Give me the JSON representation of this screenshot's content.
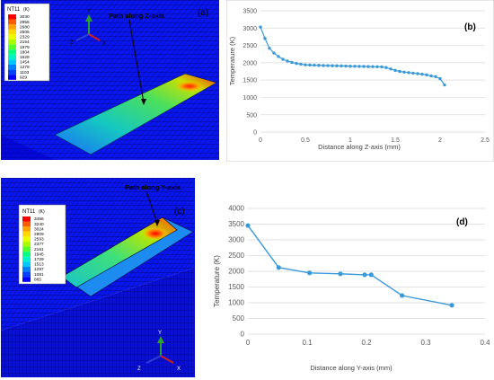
{
  "panels": [
    {
      "id": "a",
      "panel_label": "(a)",
      "legend": {
        "title": "NT11",
        "unit": "(K)",
        "values": [
          "3030",
          "2855",
          "2680",
          "2505",
          "2329",
          "2154",
          "1979",
          "1804",
          "1629",
          "1454",
          "1278",
          "1103",
          "929"
        ],
        "colors": [
          "#ff0000",
          "#ff5a00",
          "#ffa200",
          "#ffd800",
          "#e7ff00",
          "#a8ff00",
          "#55ff2a",
          "#00ff7f",
          "#00f2c8",
          "#00c8ff",
          "#0080ff",
          "#0040ff",
          "#0000ff"
        ]
      },
      "annotation": "Path along Z-axis",
      "axes": {
        "y": "Y",
        "z": "Z",
        "x": "X"
      }
    },
    {
      "id": "c",
      "panel_label": "(c)",
      "legend": {
        "title": "NT11",
        "unit": "(K)",
        "values": [
          "3456",
          "3240",
          "3024",
          "2809",
          "2593",
          "2377",
          "2161",
          "1945",
          "1729",
          "1513",
          "1297",
          "1081",
          "865"
        ],
        "colors": [
          "#ff0000",
          "#ff5a00",
          "#ffa200",
          "#ffd800",
          "#e7ff00",
          "#a8ff00",
          "#55ff2a",
          "#00ff7f",
          "#00f2c8",
          "#00c8ff",
          "#0080ff",
          "#0040ff",
          "#0000ff"
        ]
      },
      "annotation": "Path along Y-axis",
      "axes": {
        "y": "Y",
        "z": "Z",
        "x": "X"
      }
    }
  ],
  "colors": {
    "series": "#3a9ad9",
    "grid": "#d9d9d9",
    "axis_text": "#595959",
    "mesh_blue": "#0a16f0",
    "mesh_line": "#00003c"
  },
  "chart_data": [
    {
      "type": "line",
      "panel_label": "(b)",
      "xlabel": "Distance along Z-axis (mm)",
      "ylabel": "Temperature (K)",
      "xlim": [
        0,
        2.5
      ],
      "ylim": [
        0,
        3500
      ],
      "xticks": [
        0,
        0.5,
        1,
        1.5,
        2,
        2.5
      ],
      "yticks": [
        0,
        500,
        1000,
        1500,
        2000,
        2500,
        3000,
        3500
      ],
      "xtick_labels": [
        "0",
        "0.5",
        "1",
        "1.5",
        "2",
        "2.5"
      ],
      "ytick_labels": [
        "0",
        "500",
        "1000",
        "1500",
        "2000",
        "2500",
        "3000",
        "3500"
      ],
      "grid": "horizontal",
      "series": [
        {
          "x": [
            0,
            0.05,
            0.1,
            0.15,
            0.2,
            0.25,
            0.3,
            0.35,
            0.4,
            0.45,
            0.5,
            0.55,
            0.6,
            0.65,
            0.7,
            0.75,
            0.8,
            0.85,
            0.9,
            0.95,
            1.0,
            1.05,
            1.1,
            1.15,
            1.2,
            1.25,
            1.3,
            1.35,
            1.4,
            1.45,
            1.5,
            1.55,
            1.6,
            1.65,
            1.7,
            1.75,
            1.8,
            1.85,
            1.9,
            1.95,
            2.0,
            2.05
          ],
          "y": [
            3030,
            2700,
            2420,
            2280,
            2180,
            2100,
            2050,
            2010,
            1980,
            1960,
            1940,
            1935,
            1930,
            1925,
            1920,
            1918,
            1915,
            1912,
            1910,
            1905,
            1900,
            1898,
            1895,
            1893,
            1890,
            1888,
            1885,
            1880,
            1860,
            1820,
            1780,
            1750,
            1730,
            1715,
            1700,
            1685,
            1670,
            1650,
            1620,
            1600,
            1540,
            1360
          ]
        }
      ]
    },
    {
      "type": "line",
      "panel_label": "(d)",
      "xlabel": "Distance along Y-axis (mm)",
      "ylabel": "Temperature (K)",
      "xlim": [
        0,
        0.4
      ],
      "ylim": [
        0,
        4000
      ],
      "xticks": [
        0,
        0.1,
        0.2,
        0.3,
        0.4
      ],
      "yticks": [
        0,
        500,
        1000,
        1500,
        2000,
        2500,
        3000,
        3500,
        4000
      ],
      "xtick_labels": [
        "0",
        "0.1",
        "0.2",
        "0.3",
        "0.4"
      ],
      "ytick_labels": [
        "0",
        "500",
        "1000",
        "1500",
        "2000",
        "2500",
        "3000",
        "3500",
        "4000"
      ],
      "grid": "horizontal",
      "series": [
        {
          "x": [
            0,
            0.052,
            0.104,
            0.156,
            0.197,
            0.208,
            0.26,
            0.344
          ],
          "y": [
            3456,
            2120,
            1950,
            1920,
            1890,
            1890,
            1230,
            920
          ]
        }
      ]
    }
  ]
}
